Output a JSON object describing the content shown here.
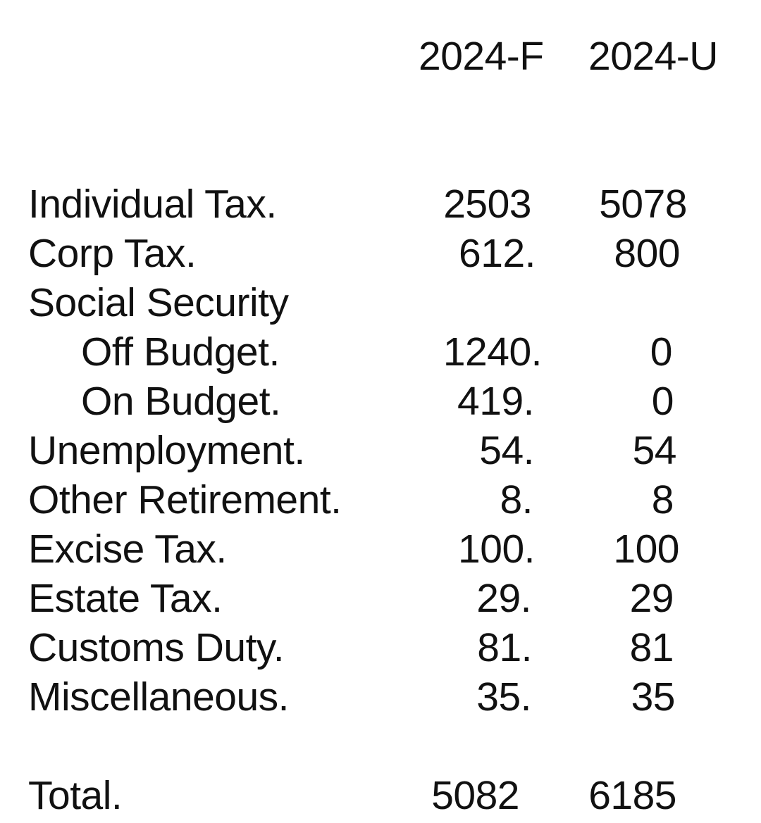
{
  "columns": {
    "f": "2024-F",
    "u": "2024-U"
  },
  "rows": [
    {
      "label": "Individual Tax.",
      "f": "2503",
      "u": "5078",
      "indent": false
    },
    {
      "label": "Corp Tax.",
      "f": "612.",
      "u": "800",
      "indent": false
    },
    {
      "label": "Social Security",
      "f": "",
      "u": "",
      "indent": false
    },
    {
      "label": "Off Budget.",
      "f": "1240.",
      "u": "0",
      "indent": true
    },
    {
      "label": "On Budget.",
      "f": "419.",
      "u": "0",
      "indent": true
    },
    {
      "label": "Unemployment.",
      "f": "54.",
      "u": "54",
      "indent": false
    },
    {
      "label": "Other Retirement.",
      "f": "8.",
      "u": "8",
      "indent": false
    },
    {
      "label": "Excise Tax.",
      "f": "100.",
      "u": "100",
      "indent": false
    },
    {
      "label": "Estate Tax.",
      "f": "29.",
      "u": "29",
      "indent": false
    },
    {
      "label": "Customs Duty.",
      "f": "81.",
      "u": "81",
      "indent": false
    },
    {
      "label": "Miscellaneous.",
      "f": "35.",
      "u": "35",
      "indent": false
    }
  ],
  "total": {
    "label": "Total.",
    "f": "5082",
    "u": "6185"
  }
}
